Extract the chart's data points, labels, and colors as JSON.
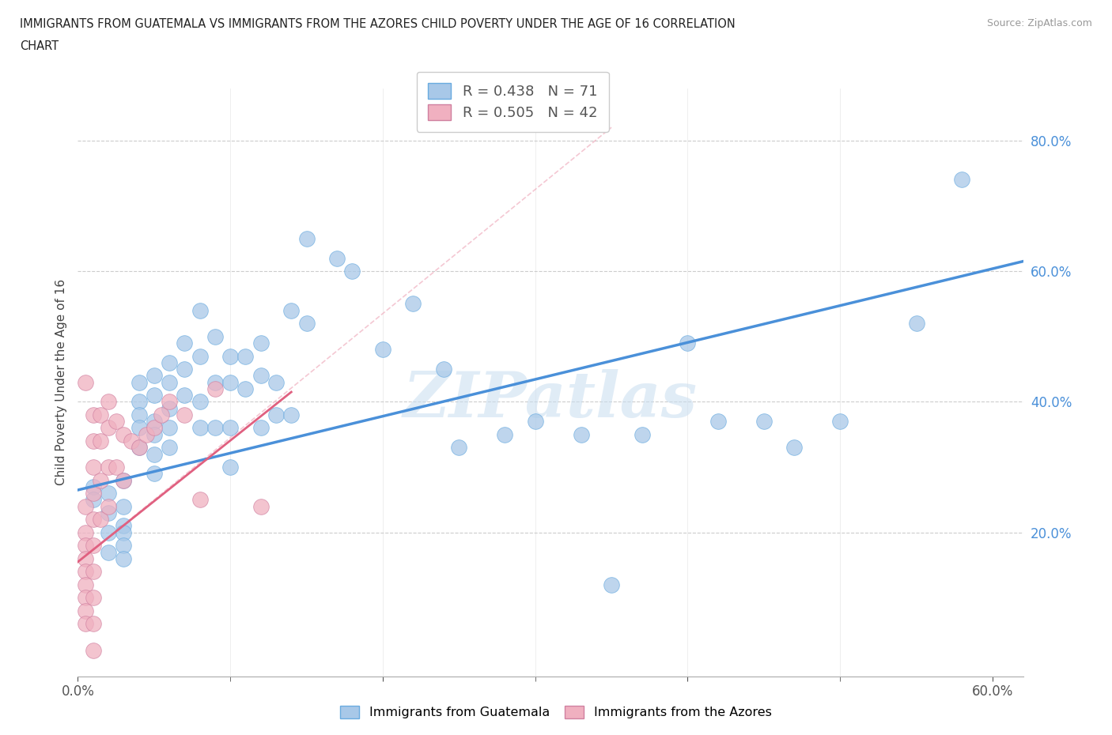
{
  "title_line1": "IMMIGRANTS FROM GUATEMALA VS IMMIGRANTS FROM THE AZORES CHILD POVERTY UNDER THE AGE OF 16 CORRELATION",
  "title_line2": "CHART",
  "source": "Source: ZipAtlas.com",
  "ylabel": "Child Poverty Under the Age of 16",
  "ytick_labels": [
    "20.0%",
    "40.0%",
    "60.0%",
    "80.0%"
  ],
  "ytick_values": [
    0.2,
    0.4,
    0.6,
    0.8
  ],
  "xlim": [
    0.0,
    0.62
  ],
  "ylim": [
    -0.02,
    0.88
  ],
  "legend1_R": "0.438",
  "legend1_N": "71",
  "legend2_R": "0.505",
  "legend2_N": "42",
  "blue_color": "#a8c8e8",
  "pink_color": "#f0b0c0",
  "blue_line_color": "#4a90d9",
  "pink_line_color": "#e06080",
  "pink_dash_color": "#f0b0c0",
  "watermark": "ZIPatlas",
  "guatemala_scatter": [
    [
      0.01,
      0.27
    ],
    [
      0.01,
      0.25
    ],
    [
      0.02,
      0.26
    ],
    [
      0.02,
      0.23
    ],
    [
      0.02,
      0.2
    ],
    [
      0.02,
      0.17
    ],
    [
      0.03,
      0.28
    ],
    [
      0.03,
      0.24
    ],
    [
      0.03,
      0.21
    ],
    [
      0.03,
      0.2
    ],
    [
      0.03,
      0.18
    ],
    [
      0.03,
      0.16
    ],
    [
      0.04,
      0.43
    ],
    [
      0.04,
      0.4
    ],
    [
      0.04,
      0.38
    ],
    [
      0.04,
      0.36
    ],
    [
      0.04,
      0.33
    ],
    [
      0.05,
      0.44
    ],
    [
      0.05,
      0.41
    ],
    [
      0.05,
      0.37
    ],
    [
      0.05,
      0.35
    ],
    [
      0.05,
      0.32
    ],
    [
      0.05,
      0.29
    ],
    [
      0.06,
      0.46
    ],
    [
      0.06,
      0.43
    ],
    [
      0.06,
      0.39
    ],
    [
      0.06,
      0.36
    ],
    [
      0.06,
      0.33
    ],
    [
      0.07,
      0.49
    ],
    [
      0.07,
      0.45
    ],
    [
      0.07,
      0.41
    ],
    [
      0.08,
      0.54
    ],
    [
      0.08,
      0.47
    ],
    [
      0.08,
      0.4
    ],
    [
      0.08,
      0.36
    ],
    [
      0.09,
      0.5
    ],
    [
      0.09,
      0.43
    ],
    [
      0.09,
      0.36
    ],
    [
      0.1,
      0.47
    ],
    [
      0.1,
      0.43
    ],
    [
      0.1,
      0.36
    ],
    [
      0.1,
      0.3
    ],
    [
      0.11,
      0.47
    ],
    [
      0.11,
      0.42
    ],
    [
      0.12,
      0.49
    ],
    [
      0.12,
      0.44
    ],
    [
      0.12,
      0.36
    ],
    [
      0.13,
      0.43
    ],
    [
      0.13,
      0.38
    ],
    [
      0.14,
      0.54
    ],
    [
      0.14,
      0.38
    ],
    [
      0.15,
      0.65
    ],
    [
      0.15,
      0.52
    ],
    [
      0.17,
      0.62
    ],
    [
      0.18,
      0.6
    ],
    [
      0.2,
      0.48
    ],
    [
      0.22,
      0.55
    ],
    [
      0.24,
      0.45
    ],
    [
      0.25,
      0.33
    ],
    [
      0.28,
      0.35
    ],
    [
      0.3,
      0.37
    ],
    [
      0.33,
      0.35
    ],
    [
      0.35,
      0.12
    ],
    [
      0.37,
      0.35
    ],
    [
      0.4,
      0.49
    ],
    [
      0.42,
      0.37
    ],
    [
      0.45,
      0.37
    ],
    [
      0.47,
      0.33
    ],
    [
      0.5,
      0.37
    ],
    [
      0.55,
      0.52
    ],
    [
      0.58,
      0.74
    ]
  ],
  "azores_scatter": [
    [
      0.005,
      0.43
    ],
    [
      0.005,
      0.24
    ],
    [
      0.005,
      0.2
    ],
    [
      0.005,
      0.18
    ],
    [
      0.005,
      0.16
    ],
    [
      0.005,
      0.14
    ],
    [
      0.005,
      0.12
    ],
    [
      0.005,
      0.1
    ],
    [
      0.005,
      0.08
    ],
    [
      0.005,
      0.06
    ],
    [
      0.01,
      0.38
    ],
    [
      0.01,
      0.34
    ],
    [
      0.01,
      0.3
    ],
    [
      0.01,
      0.26
    ],
    [
      0.01,
      0.22
    ],
    [
      0.01,
      0.18
    ],
    [
      0.01,
      0.14
    ],
    [
      0.01,
      0.1
    ],
    [
      0.01,
      0.06
    ],
    [
      0.01,
      0.02
    ],
    [
      0.015,
      0.38
    ],
    [
      0.015,
      0.34
    ],
    [
      0.015,
      0.28
    ],
    [
      0.015,
      0.22
    ],
    [
      0.02,
      0.4
    ],
    [
      0.02,
      0.36
    ],
    [
      0.02,
      0.3
    ],
    [
      0.02,
      0.24
    ],
    [
      0.025,
      0.37
    ],
    [
      0.025,
      0.3
    ],
    [
      0.03,
      0.35
    ],
    [
      0.03,
      0.28
    ],
    [
      0.035,
      0.34
    ],
    [
      0.04,
      0.33
    ],
    [
      0.045,
      0.35
    ],
    [
      0.05,
      0.36
    ],
    [
      0.055,
      0.38
    ],
    [
      0.06,
      0.4
    ],
    [
      0.07,
      0.38
    ],
    [
      0.08,
      0.25
    ],
    [
      0.09,
      0.42
    ],
    [
      0.12,
      0.24
    ]
  ],
  "guatemala_line_x": [
    0.0,
    0.62
  ],
  "guatemala_line_y": [
    0.265,
    0.615
  ],
  "azores_line_x": [
    0.0,
    0.14
  ],
  "azores_line_y": [
    0.155,
    0.415
  ],
  "azores_dash_line_x": [
    0.0,
    0.35
  ],
  "azores_dash_line_y": [
    0.155,
    0.82
  ]
}
